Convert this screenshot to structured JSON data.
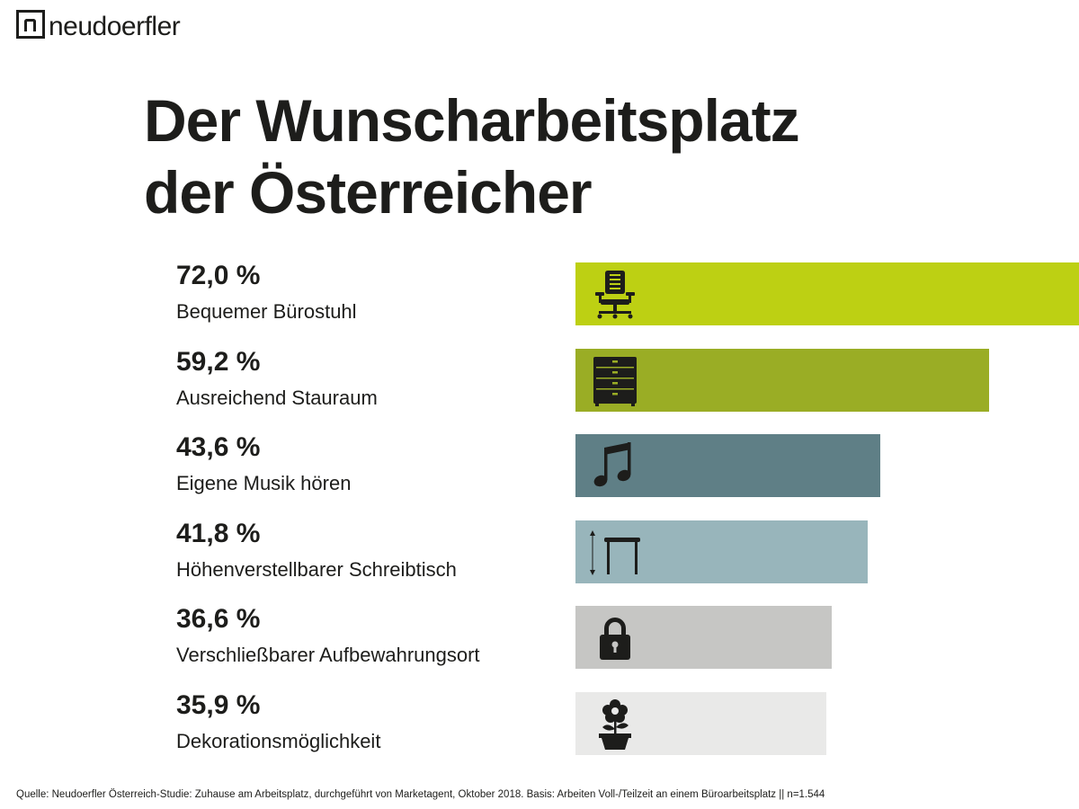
{
  "logo": {
    "text": "neudoerfler"
  },
  "title": {
    "line1": "Der Wunscharbeitsplatz",
    "line2": "der Österreicher"
  },
  "chart_data": {
    "type": "bar",
    "orientation": "horizontal",
    "title": "Der Wunscharbeitsplatz der Österreicher",
    "unit": "%",
    "xlim": [
      0,
      72.0
    ],
    "items": [
      {
        "value": 72.0,
        "value_label": "72,0 %",
        "label": "Bequemer Bürostuhl",
        "icon": "office-chair-icon",
        "color": "#bdd013"
      },
      {
        "value": 59.2,
        "value_label": "59,2 %",
        "label": "Ausreichend Stauraum",
        "icon": "drawer-cabinet-icon",
        "color": "#9aad25"
      },
      {
        "value": 43.6,
        "value_label": "43,6 %",
        "label": "Eigene Musik hören",
        "icon": "music-note-icon",
        "color": "#5f7f86"
      },
      {
        "value": 41.8,
        "value_label": "41,8 %",
        "label": "Höhenverstellbarer Schreibtisch",
        "icon": "height-adjustable-desk-icon",
        "color": "#98b5bb"
      },
      {
        "value": 36.6,
        "value_label": "36,6 %",
        "label": "Verschließbarer Aufbewahrungsort",
        "icon": "padlock-icon",
        "color": "#c6c6c4"
      },
      {
        "value": 35.9,
        "value_label": "35,9 %",
        "label": "Dekorationsmöglichkeit",
        "icon": "flower-pot-icon",
        "color": "#e9e9e8"
      }
    ]
  },
  "footer": {
    "source": "Quelle: Neudoerfler Österreich-Studie: Zuhause am Arbeitsplatz, durchgeführt von Marketagent, Oktober 2018. Basis: Arbeiten Voll-/Teilzeit an einem Büroarbeitsplatz || n=1.544"
  }
}
